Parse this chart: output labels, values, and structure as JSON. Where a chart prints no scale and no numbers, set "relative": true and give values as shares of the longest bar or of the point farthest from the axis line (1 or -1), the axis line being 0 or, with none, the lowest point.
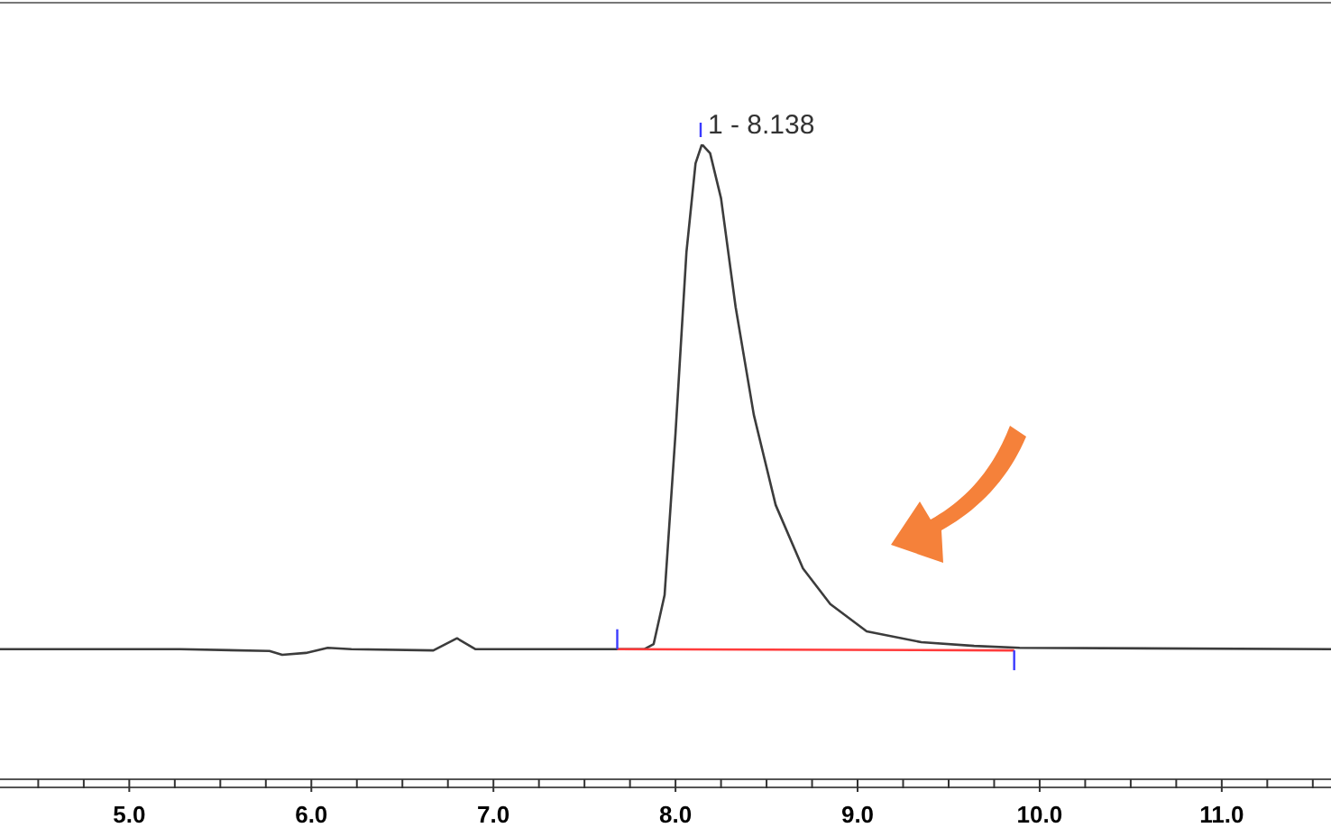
{
  "chart_data": {
    "type": "line",
    "relative": true,
    "xlim": [
      4.29,
      11.6
    ],
    "xticks": [
      {
        "value": 4.5,
        "label": null
      },
      {
        "value": 4.75,
        "label": null
      },
      {
        "value": 5,
        "label": "5.0"
      },
      {
        "value": 5.25,
        "label": null
      },
      {
        "value": 5.5,
        "label": null
      },
      {
        "value": 5.75,
        "label": null
      },
      {
        "value": 6,
        "label": "6.0"
      },
      {
        "value": 6.25,
        "label": null
      },
      {
        "value": 6.5,
        "label": null
      },
      {
        "value": 6.75,
        "label": null
      },
      {
        "value": 7,
        "label": "7.0"
      },
      {
        "value": 7.25,
        "label": null
      },
      {
        "value": 7.5,
        "label": null
      },
      {
        "value": 7.75,
        "label": null
      },
      {
        "value": 8,
        "label": "8.0"
      },
      {
        "value": 8.25,
        "label": null
      },
      {
        "value": 8.5,
        "label": null
      },
      {
        "value": 8.75,
        "label": null
      },
      {
        "value": 9,
        "label": "9.0"
      },
      {
        "value": 9.25,
        "label": null
      },
      {
        "value": 9.5,
        "label": null
      },
      {
        "value": 9.75,
        "label": null
      },
      {
        "value": 10,
        "label": "10.0"
      },
      {
        "value": 10.25,
        "label": null
      },
      {
        "value": 10.5,
        "label": null
      },
      {
        "value": 10.75,
        "label": null
      },
      {
        "value": 11,
        "label": "11.0"
      },
      {
        "value": 11.25,
        "label": null
      },
      {
        "value": 11.5,
        "label": null
      }
    ],
    "series": [
      {
        "color": "#3c3c3c",
        "x": [
          4.29,
          5.28,
          5.77,
          5.84,
          5.97,
          6.09,
          6.22,
          6.67,
          6.8,
          6.9,
          7.66,
          7.83,
          7.88,
          7.94,
          8.0,
          8.06,
          8.11,
          8.145,
          8.19,
          8.25,
          8.33,
          8.43,
          8.55,
          8.7,
          8.85,
          9.05,
          9.35,
          9.64,
          9.89,
          11.6
        ],
        "values": [
          0.205,
          0.205,
          0.202,
          0.196,
          0.199,
          0.207,
          0.205,
          0.203,
          0.222,
          0.205,
          0.205,
          0.205,
          0.213,
          0.29,
          0.545,
          0.83,
          0.97,
          1,
          0.986,
          0.915,
          0.744,
          0.574,
          0.432,
          0.332,
          0.276,
          0.233,
          0.216,
          0.21,
          0.207,
          0.205
        ]
      },
      {
        "type": "line",
        "color": "#ff3b3b",
        "x": [
          7.68,
          9.86
        ],
        "values": [
          0.205,
          0.203
        ]
      }
    ],
    "annotations": [
      {
        "text": "1 - 8.138",
        "x": 8.138,
        "y": 1
      }
    ],
    "grid": false,
    "marker": "none",
    "line_style": "solid"
  }
}
